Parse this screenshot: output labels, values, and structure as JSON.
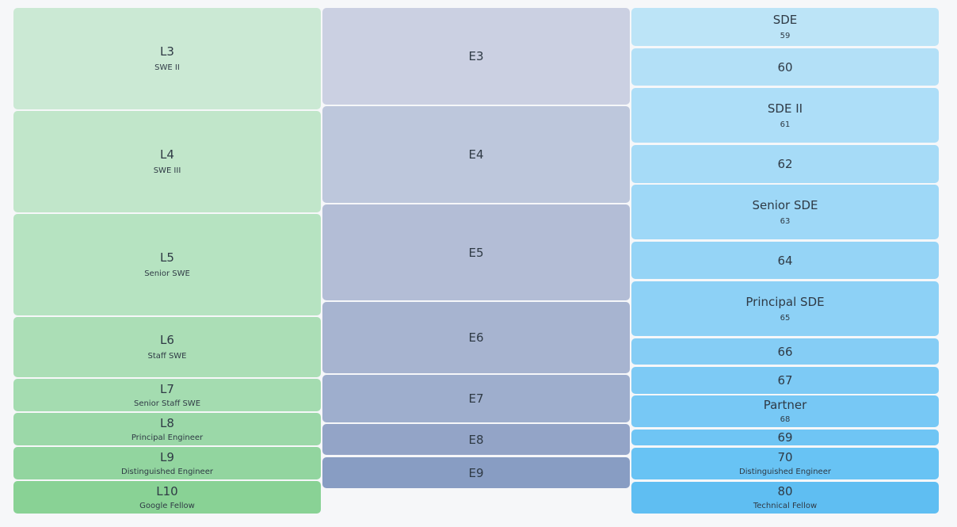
{
  "google": [
    {
      "level": "L3",
      "title": "SWE II",
      "color": "#cbe9d4"
    },
    {
      "level": "L4",
      "title": "SWE III",
      "color": "#c1e6ca"
    },
    {
      "level": "L5",
      "title": "Senior SWE",
      "color": "#b6e3c1"
    },
    {
      "level": "L6",
      "title": "Staff SWE",
      "color": "#abdeb6"
    },
    {
      "level": "L7",
      "title": "Senior Staff SWE",
      "color": "#a4dcb0"
    },
    {
      "level": "L8",
      "title": "Principal Engineer",
      "color": "#9bd8a8"
    },
    {
      "level": "L9",
      "title": "Distinguished Engineer",
      "color": "#92d59f"
    },
    {
      "level": "L10",
      "title": "Google Fellow",
      "color": "#89d295"
    }
  ],
  "facebook": [
    {
      "level": "E3",
      "color": "#cbd0e2"
    },
    {
      "level": "E4",
      "color": "#bdc7dc"
    },
    {
      "level": "E5",
      "color": "#b3bdd6"
    },
    {
      "level": "E6",
      "color": "#a7b4d0"
    },
    {
      "level": "E7",
      "color": "#9eaecd"
    },
    {
      "level": "E8",
      "color": "#93a4c7"
    },
    {
      "level": "E9",
      "color": "#889dc3"
    }
  ],
  "microsoft": [
    {
      "level": "SDE",
      "title": "59",
      "color": "#bce4f7"
    },
    {
      "level": "60",
      "title": "",
      "color": "#b3e0f7"
    },
    {
      "level": "SDE II",
      "title": "61",
      "color": "#addef8"
    },
    {
      "level": "62",
      "title": "",
      "color": "#a6dbf7"
    },
    {
      "level": "Senior SDE",
      "title": "63",
      "color": "#9ed8f7"
    },
    {
      "level": "64",
      "title": "",
      "color": "#95d4f6"
    },
    {
      "level": "Principal SDE",
      "title": "65",
      "color": "#8dd1f6"
    },
    {
      "level": "66",
      "title": "",
      "color": "#85cdf5"
    },
    {
      "level": "67",
      "title": "",
      "color": "#7dcaf5"
    },
    {
      "level": "Partner",
      "title": "68",
      "color": "#77c8f5"
    },
    {
      "level": "69",
      "title": "",
      "color": "#6fc5f4"
    },
    {
      "level": "70",
      "title": "Distinguished Engineer",
      "color": "#68c3f4"
    },
    {
      "level": "80",
      "title": "Technical Fellow",
      "color": "#5fbef2"
    }
  ]
}
